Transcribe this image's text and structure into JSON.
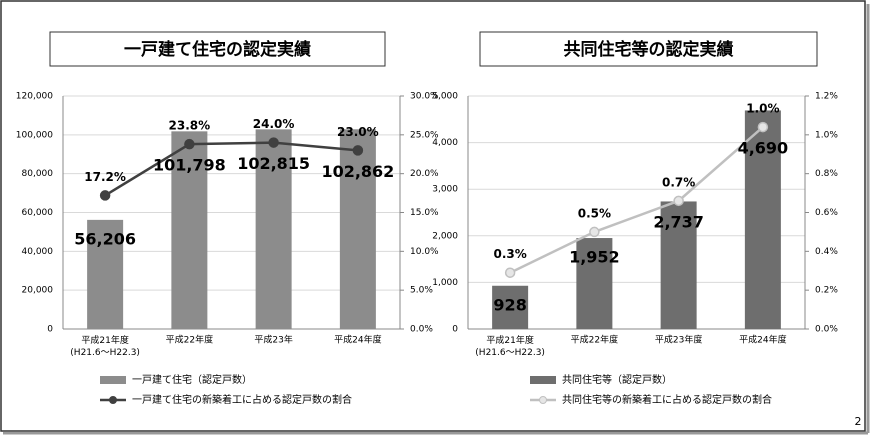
{
  "chart_data": [
    {
      "type": "bar",
      "title": "一戸建て住宅の認定実績",
      "categories": [
        "平成21年度\n(H21.6～H22.3)",
        "平成22年度",
        "平成23年",
        "平成24年度"
      ],
      "series": [
        {
          "name": "一戸建て住宅（認定戸数）",
          "type": "bar",
          "color": "#8c8c8c",
          "values": [
            56206,
            101798,
            102815,
            102862
          ],
          "value_labels": [
            "56,206",
            "101,798",
            "102,815",
            "102,862"
          ]
        },
        {
          "name": "一戸建て住宅の新築着工に占める認定戸数の割合",
          "type": "line",
          "axis": "y2",
          "color": "#404040",
          "marker_color": "#404040",
          "values": [
            17.2,
            23.8,
            24.0,
            23.0
          ],
          "value_labels": [
            "17.2%",
            "23.8%",
            "24.0%",
            "23.0%"
          ]
        }
      ],
      "ylim": [
        0,
        120000
      ],
      "yticks": [
        0,
        {
          "value": 20000,
          "label": "20,000"
        },
        {
          "value": 40000,
          "label": "40,000"
        },
        {
          "value": 60000,
          "label": "60,000"
        },
        {
          "value": 80000,
          "label": "80,000"
        },
        {
          "value": 100000,
          "label": "100,000"
        },
        {
          "value": 120000,
          "label": "120,000"
        }
      ],
      "y2lim": [
        0,
        30
      ],
      "y2ticks": [
        {
          "value": 0,
          "label": "0.0%"
        },
        {
          "value": 5,
          "label": "5.0%"
        },
        {
          "value": 10,
          "label": "10.0%"
        },
        {
          "value": 15,
          "label": "15.0%"
        },
        {
          "value": 20,
          "label": "20.0%"
        },
        {
          "value": 25,
          "label": "25.0%"
        },
        {
          "value": 30,
          "label": "30.0%"
        }
      ],
      "grid": true
    },
    {
      "type": "bar",
      "title": "共同住宅等の認定実績",
      "categories": [
        "平成21年度\n(H21.6～H22.3)",
        "平成22年度",
        "平成23年度",
        "平成24年度"
      ],
      "series": [
        {
          "name": "共同住宅等（認定戸数）",
          "type": "bar",
          "color": "#6e6e6e",
          "values": [
            928,
            1952,
            2737,
            4690
          ],
          "value_labels": [
            "928",
            "1,952",
            "2,737",
            "4,690"
          ]
        },
        {
          "name": "共同住宅等の新築着工に占める認定戸数の割合",
          "type": "line",
          "axis": "y2",
          "color": "#c0c0c0",
          "marker_color": "#e6e6e6",
          "values": [
            0.29,
            0.5,
            0.66,
            1.04
          ],
          "value_labels": [
            "0.3%",
            "0.5%",
            "0.7%",
            "1.0%"
          ]
        }
      ],
      "ylim": [
        0,
        5000
      ],
      "yticks": [
        0,
        {
          "value": 1000,
          "label": "1,000"
        },
        {
          "value": 2000,
          "label": "2,000"
        },
        {
          "value": 3000,
          "label": "3,000"
        },
        {
          "value": 4000,
          "label": "4,000"
        },
        {
          "value": 5000,
          "label": "5,000"
        }
      ],
      "y2lim": [
        0,
        1.2
      ],
      "y2ticks": [
        {
          "value": 0,
          "label": "0.0%"
        },
        {
          "value": 0.2,
          "label": "0.2%"
        },
        {
          "value": 0.4,
          "label": "0.4%"
        },
        {
          "value": 0.6,
          "label": "0.6%"
        },
        {
          "value": 0.8,
          "label": "0.8%"
        },
        {
          "value": 1.0,
          "label": "1.0%"
        },
        {
          "value": 1.2,
          "label": "1.2%"
        }
      ],
      "grid": true
    }
  ],
  "page_number": "2"
}
